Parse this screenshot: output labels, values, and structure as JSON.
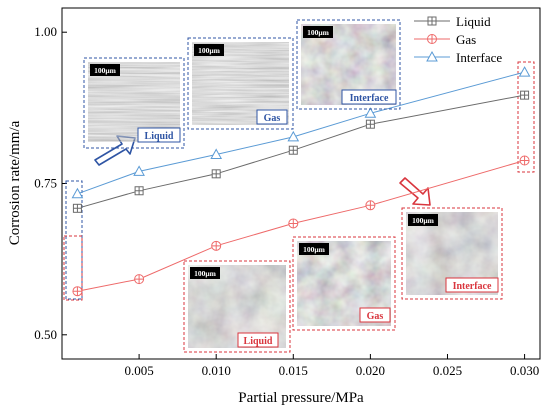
{
  "chart_data": {
    "type": "line",
    "xlabel": "Partial pressure/MPa",
    "ylabel": "Corrosion rate/mm/a",
    "xlim": [
      0.0,
      0.031
    ],
    "ylim": [
      0.46,
      1.04
    ],
    "x_ticks": [
      0.005,
      0.01,
      0.015,
      0.02,
      0.025,
      0.03
    ],
    "x_tick_labels": [
      "0.005",
      "0.010",
      "0.015",
      "0.020",
      "0.025",
      "0.030"
    ],
    "y_ticks": [
      0.5,
      0.75,
      1.0
    ],
    "y_tick_labels": [
      "0.50",
      "0.75",
      "1.00"
    ],
    "x": [
      0.001,
      0.005,
      0.01,
      0.015,
      0.02,
      0.03
    ],
    "legend_position": "top-right",
    "grid": false,
    "series": [
      {
        "name": "Liquid",
        "color": "#6b6b6b",
        "marker": "square-plus",
        "values": [
          0.709,
          0.738,
          0.766,
          0.805,
          0.848,
          0.896
        ]
      },
      {
        "name": "Gas",
        "color": "#ee6a6a",
        "marker": "circle-plus",
        "values": [
          0.572,
          0.592,
          0.647,
          0.684,
          0.714,
          0.788
        ]
      },
      {
        "name": "Interface",
        "color": "#5b9bd5",
        "marker": "triangle",
        "values": [
          0.733,
          0.77,
          0.798,
          0.827,
          0.866,
          0.934
        ]
      }
    ]
  },
  "insets": [
    {
      "label": "Liquid",
      "scale": "100μm",
      "border_color": "#2f55a4",
      "tone": "#8e8e86"
    },
    {
      "label": "Gas",
      "scale": "100μm",
      "border_color": "#2f55a4",
      "tone": "#85858a"
    },
    {
      "label": "Interface",
      "scale": "100μm",
      "border_color": "#2f55a4",
      "tone": "#7a6e88"
    },
    {
      "label": "Liquid",
      "scale": "100μm",
      "border_color": "#d9363e",
      "tone": "#8a7a66"
    },
    {
      "label": "Gas",
      "scale": "100μm",
      "border_color": "#d9363e",
      "tone": "#9b9b9b"
    },
    {
      "label": "Interface",
      "scale": "100μm",
      "border_color": "#d9363e",
      "tone": "#a59a88"
    }
  ]
}
